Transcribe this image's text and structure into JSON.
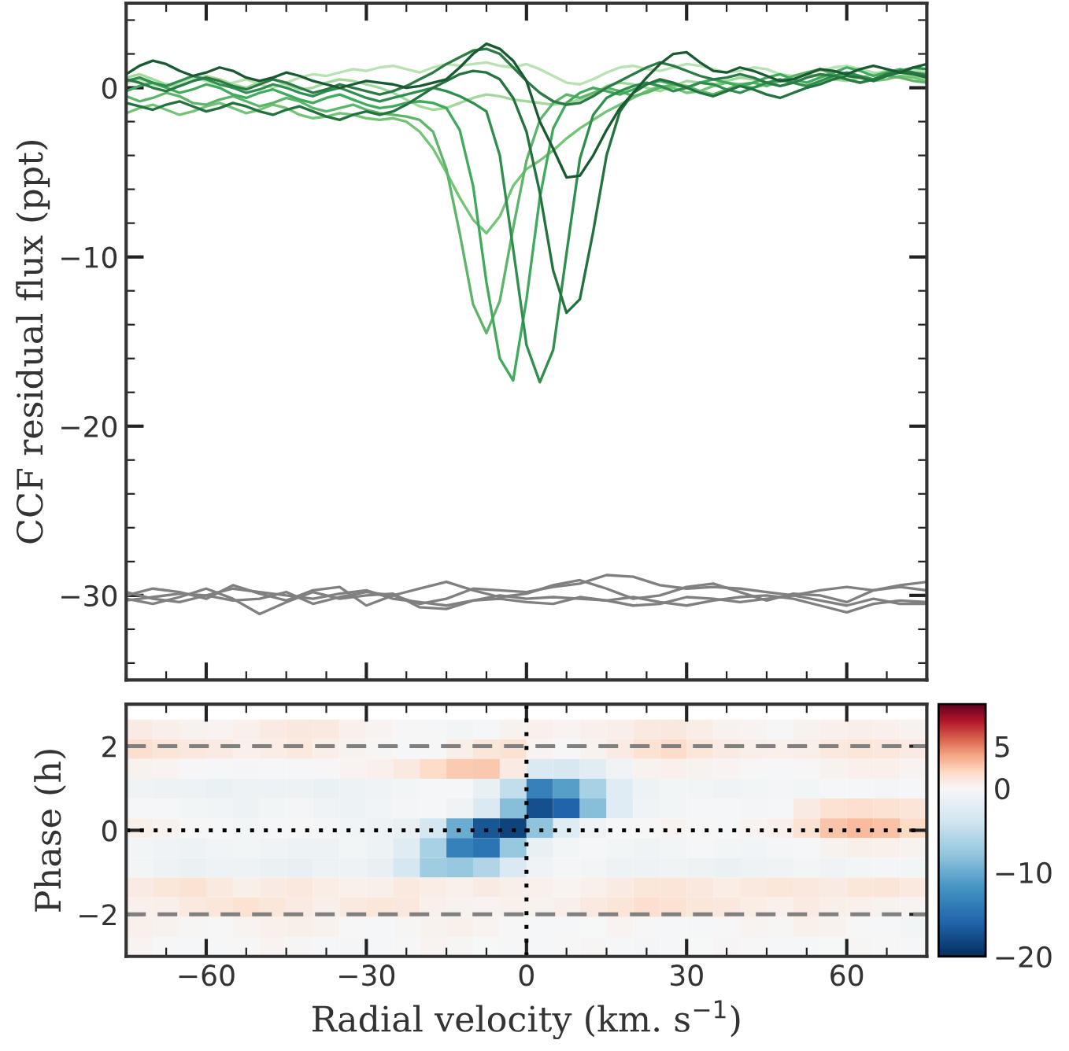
{
  "chart_data": [
    {
      "type": "line",
      "ylabel": "CCF residual flux (ppt)",
      "xlim": [
        -75,
        75
      ],
      "ylim": [
        -35,
        5
      ],
      "xticks": [
        {
          "value": -60,
          "label": null
        },
        {
          "value": -30,
          "label": null
        },
        {
          "value": 0,
          "label": null
        },
        {
          "value": 30,
          "label": null
        },
        {
          "value": 60,
          "label": null
        }
      ],
      "yticks": [
        -30,
        -20,
        -10,
        0
      ],
      "tick_labels": "y",
      "grid": false,
      "marker": "none",
      "line_style": "solid",
      "x": [
        -75,
        -72.5,
        -70,
        -67.5,
        -65,
        -62.5,
        -60,
        -57.5,
        -55,
        -52.5,
        -50,
        -47.5,
        -45,
        -42.5,
        -40,
        -37.5,
        -35,
        -32.5,
        -30,
        -27.5,
        -25,
        -22.5,
        -20,
        -17.5,
        -15,
        -12.5,
        -10,
        -7.5,
        -5,
        -2.5,
        0,
        2.5,
        5,
        7.5,
        10,
        12.5,
        15,
        17.5,
        20,
        22.5,
        25,
        27.5,
        30,
        32.5,
        35,
        37.5,
        40,
        42.5,
        45,
        47.5,
        50,
        52.5,
        55,
        57.5,
        60,
        62.5,
        65,
        67.5,
        70,
        72.5,
        75
      ],
      "series": [
        {
          "color": "#b7e2b1",
          "values": [
            0.3,
            0.5,
            0.2,
            0.0,
            0.3,
            0.6,
            0.4,
            0.1,
            0.3,
            0.5,
            0.2,
            0.0,
            0.3,
            0.6,
            0.8,
            0.7,
            0.9,
            1.1,
            1.0,
            1.2,
            1.3,
            1.1,
            0.9,
            1.2,
            1.4,
            1.3,
            1.4,
            1.5,
            1.3,
            1.2,
            1.4,
            1.1,
            0.7,
            0.3,
            0.2,
            0.5,
            0.9,
            1.2,
            1.3,
            1.1,
            1.0,
            1.2,
            1.4,
            1.3,
            1.1,
            0.9,
            1.0,
            1.2,
            1.1,
            0.8,
            0.7,
            0.9,
            1.0,
            1.2,
            1.3,
            1.1,
            0.9,
            0.8,
            1.0,
            1.1,
            0.9
          ]
        },
        {
          "color": "#a1d99b",
          "values": [
            0.6,
            0.8,
            0.5,
            0.2,
            0.1,
            0.4,
            0.7,
            0.5,
            0.2,
            0.0,
            0.3,
            0.5,
            0.2,
            -0.1,
            0.0,
            0.3,
            0.5,
            0.4,
            0.2,
            0.0,
            -0.3,
            -0.7,
            -1.1,
            -1.3,
            -1.2,
            -0.9,
            -0.6,
            -0.4,
            -0.5,
            -0.7,
            -0.8,
            -0.9,
            -1.0,
            -0.9,
            -0.7,
            -0.4,
            0.1,
            0.3,
            0.2,
            0.0,
            -0.2,
            0.1,
            0.4,
            0.3,
            0.2,
            0.4,
            0.6,
            0.5,
            0.3,
            0.4,
            0.6,
            0.8,
            0.7,
            0.5,
            0.4,
            0.6,
            0.8,
            1.0,
            0.9,
            0.7,
            0.6
          ]
        },
        {
          "color": "#74c476",
          "values": [
            -1.5,
            -1.2,
            -1.0,
            -1.3,
            -1.6,
            -1.4,
            -1.1,
            -0.9,
            -1.2,
            -1.5,
            -1.3,
            -1.0,
            -1.2,
            -1.6,
            -1.8,
            -1.7,
            -1.5,
            -1.6,
            -1.8,
            -1.9,
            -1.8,
            -2.0,
            -2.6,
            -3.6,
            -5.0,
            -6.5,
            -7.8,
            -8.6,
            -7.6,
            -5.8,
            -4.8,
            -4.3,
            -3.7,
            -3.0,
            -2.4,
            -1.9,
            -1.4,
            -1.0,
            -0.6,
            -0.2,
            0.1,
            0.0,
            -0.3,
            -0.2,
            0.1,
            0.3,
            0.2,
            0.0,
            0.2,
            0.4,
            0.3,
            0.1,
            0.3,
            0.6,
            0.8,
            0.6,
            0.4,
            0.5,
            0.7,
            0.6,
            0.4
          ]
        },
        {
          "color": "#5db56a",
          "values": [
            -0.5,
            -0.8,
            -0.6,
            -0.3,
            -0.5,
            -0.9,
            -1.0,
            -0.7,
            -0.5,
            -0.8,
            -1.1,
            -0.9,
            -0.6,
            -0.8,
            -1.2,
            -1.4,
            -1.2,
            -1.0,
            -1.3,
            -1.5,
            -1.6,
            -1.7,
            -1.9,
            -2.6,
            -4.8,
            -8.6,
            -12.8,
            -14.5,
            -12.6,
            -8.3,
            -4.3,
            -1.9,
            -0.9,
            -0.4,
            -0.6,
            -0.3,
            0.0,
            -0.2,
            -0.5,
            -0.3,
            0.0,
            0.2,
            0.1,
            -0.2,
            -0.4,
            -0.1,
            0.2,
            0.3,
            0.1,
            0.4,
            0.7,
            0.9,
            1.1,
            0.8,
            0.5,
            0.3,
            0.5,
            0.7,
            0.6,
            0.4,
            0.3
          ]
        },
        {
          "color": "#41ab5d",
          "values": [
            -0.2,
            0.1,
            0.3,
            0.0,
            -0.3,
            -0.1,
            0.2,
            0.0,
            -0.4,
            -0.6,
            -0.3,
            -0.1,
            -0.4,
            -0.7,
            -0.9,
            -0.6,
            -0.4,
            -0.7,
            -1.0,
            -1.2,
            -1.1,
            -0.9,
            -0.8,
            -0.9,
            -1.2,
            -2.5,
            -5.8,
            -11.5,
            -16.0,
            -17.3,
            -12.5,
            -6.5,
            -2.4,
            -0.9,
            -0.3,
            0.0,
            -0.2,
            -0.4,
            -0.1,
            0.2,
            0.4,
            0.2,
            0.0,
            0.3,
            0.5,
            0.3,
            0.1,
            0.3,
            0.6,
            0.8,
            0.5,
            0.3,
            0.6,
            0.9,
            1.2,
            1.0,
            0.7,
            0.9,
            1.1,
            0.9,
            0.8
          ]
        },
        {
          "color": "#2f8f4e",
          "values": [
            0.4,
            0.6,
            0.3,
            0.1,
            0.4,
            0.7,
            0.5,
            0.2,
            0.0,
            -0.3,
            -0.1,
            0.2,
            0.0,
            -0.3,
            -0.5,
            -0.2,
            0.0,
            -0.3,
            -0.6,
            -0.8,
            -0.6,
            -0.4,
            -0.2,
            0.0,
            -0.2,
            -0.5,
            -0.9,
            -1.4,
            -4.0,
            -9.5,
            -15.2,
            -17.4,
            -15.5,
            -9.8,
            -4.2,
            -1.6,
            -0.6,
            -0.2,
            0.1,
            0.3,
            0.1,
            -0.2,
            0.0,
            0.3,
            0.2,
            -0.1,
            -0.3,
            0.0,
            0.3,
            0.5,
            0.3,
            0.1,
            0.4,
            0.7,
            0.9,
            0.7,
            0.5,
            0.8,
            1.0,
            1.2,
            1.1
          ]
        },
        {
          "color": "#2c7a45",
          "values": [
            0.5,
            0.3,
            0.0,
            -0.2,
            0.1,
            0.4,
            0.6,
            0.4,
            0.1,
            -0.1,
            0.2,
            0.5,
            0.3,
            0.0,
            -0.3,
            -0.1,
            0.2,
            0.0,
            -0.2,
            -0.4,
            -0.2,
            0.1,
            0.5,
            0.9,
            1.4,
            1.8,
            2.2,
            2.3,
            2.0,
            1.2,
            0.4,
            -0.3,
            -0.8,
            -1.0,
            -0.9,
            -0.5,
            0.0,
            0.4,
            0.8,
            1.2,
            1.5,
            1.3,
            1.0,
            0.7,
            0.5,
            0.6,
            0.8,
            0.6,
            0.3,
            0.1,
            0.3,
            0.6,
            0.8,
            0.7,
            0.5,
            0.3,
            0.5,
            0.8,
            1.0,
            0.9,
            0.7
          ]
        },
        {
          "color": "#23733f",
          "values": [
            -0.9,
            -1.1,
            -1.3,
            -1.0,
            -0.8,
            -1.1,
            -1.4,
            -1.2,
            -0.9,
            -1.1,
            -1.4,
            -1.6,
            -1.3,
            -1.1,
            -1.4,
            -1.7,
            -1.9,
            -1.6,
            -1.4,
            -1.6,
            -1.4,
            -1.0,
            -0.5,
            0.0,
            0.4,
            0.8,
            1.0,
            0.9,
            0.5,
            -0.6,
            -2.6,
            -6.2,
            -10.8,
            -13.3,
            -12.5,
            -8.5,
            -4.0,
            -1.4,
            -0.3,
            0.2,
            0.5,
            0.3,
            0.0,
            -0.3,
            -0.5,
            -0.2,
            0.1,
            -0.1,
            -0.4,
            -0.6,
            -0.3,
            0.0,
            0.2,
            0.5,
            0.7,
            0.6,
            0.4,
            0.7,
            0.9,
            0.8,
            0.6
          ]
        },
        {
          "color": "#1a5a32",
          "values": [
            0.8,
            1.3,
            1.6,
            1.4,
            1.0,
            0.7,
            0.9,
            1.2,
            1.0,
            0.6,
            0.4,
            0.6,
            0.9,
            0.7,
            0.4,
            0.2,
            0.0,
            0.2,
            0.4,
            0.3,
            0.2,
            0.0,
            0.1,
            0.3,
            0.5,
            1.2,
            2.0,
            2.6,
            2.3,
            1.6,
            0.4,
            -2.0,
            -3.6,
            -5.3,
            -5.2,
            -4.0,
            -2.5,
            -1.2,
            -0.3,
            0.6,
            1.4,
            2.0,
            2.1,
            1.5,
            1.0,
            0.9,
            1.2,
            1.0,
            0.7,
            0.4,
            0.5,
            0.8,
            1.1,
            1.0,
            0.8,
            1.1,
            1.3,
            1.1,
            0.9,
            1.2,
            1.4
          ]
        },
        {
          "color": "#808080",
          "x": [
            -75,
            -70,
            -65,
            -60,
            -55,
            -50,
            -45,
            -40,
            -35,
            -30,
            -25,
            -20,
            -15,
            -10,
            -5,
            0,
            5,
            10,
            15,
            20,
            25,
            30,
            35,
            40,
            45,
            50,
            55,
            60,
            65,
            70,
            75
          ],
          "values": [
            -30.0,
            -29.6,
            -29.8,
            -30.2,
            -29.4,
            -29.9,
            -30.3,
            -29.7,
            -29.5,
            -30.6,
            -30.0,
            -29.6,
            -29.2,
            -29.7,
            -30.1,
            -29.9,
            -29.4,
            -29.1,
            -29.6,
            -30.2,
            -30.0,
            -29.5,
            -29.3,
            -29.8,
            -30.3,
            -29.9,
            -30.0,
            -30.4,
            -29.7,
            -29.5,
            -29.7
          ]
        },
        {
          "color": "#808080",
          "x": [
            -75,
            -70,
            -65,
            -60,
            -55,
            -50,
            -45,
            -40,
            -35,
            -30,
            -25,
            -20,
            -15,
            -10,
            -5,
            0,
            5,
            10,
            15,
            20,
            25,
            30,
            35,
            40,
            45,
            50,
            55,
            60,
            65,
            70,
            75
          ],
          "values": [
            -30.3,
            -30.1,
            -29.9,
            -30.0,
            -30.3,
            -30.2,
            -29.8,
            -30.5,
            -30.1,
            -29.8,
            -30.0,
            -30.5,
            -30.2,
            -29.6,
            -29.7,
            -29.8,
            -29.5,
            -29.3,
            -28.8,
            -28.9,
            -29.4,
            -29.6,
            -29.5,
            -29.6,
            -29.8,
            -30.0,
            -29.7,
            -29.5,
            -29.7,
            -29.4,
            -29.2
          ]
        },
        {
          "color": "#808080",
          "x": [
            -75,
            -70,
            -65,
            -60,
            -55,
            -50,
            -45,
            -40,
            -35,
            -30,
            -25,
            -20,
            -15,
            -10,
            -5,
            0,
            5,
            10,
            15,
            20,
            25,
            30,
            35,
            40,
            45,
            50,
            55,
            60,
            65,
            70,
            75
          ],
          "values": [
            -29.8,
            -30.2,
            -30.4,
            -30.0,
            -29.6,
            -29.8,
            -30.0,
            -30.2,
            -29.9,
            -29.7,
            -30.2,
            -30.4,
            -30.6,
            -30.3,
            -30.2,
            -30.4,
            -30.5,
            -30.1,
            -30.3,
            -30.1,
            -30.4,
            -30.6,
            -30.3,
            -30.1,
            -30.0,
            -30.2,
            -30.6,
            -31.0,
            -30.5,
            -30.3,
            -30.4
          ]
        },
        {
          "color": "#808080",
          "x": [
            -75,
            -70,
            -65,
            -60,
            -55,
            -50,
            -45,
            -40,
            -35,
            -30,
            -25,
            -20,
            -15,
            -10,
            -5,
            0,
            5,
            10,
            15,
            20,
            25,
            30,
            35,
            40,
            45,
            50,
            55,
            60,
            65,
            70,
            75
          ],
          "values": [
            -30.2,
            -30.5,
            -30.1,
            -29.6,
            -30.2,
            -31.1,
            -30.4,
            -29.8,
            -30.2,
            -30.0,
            -29.9,
            -30.7,
            -30.8,
            -30.3,
            -30.0,
            -30.2,
            -30.1,
            -30.2,
            -30.3,
            -30.6,
            -30.5,
            -30.1,
            -30.2,
            -30.4,
            -30.2,
            -30.0,
            -30.3,
            -30.6,
            -30.2,
            -30.5,
            -30.5
          ]
        }
      ]
    },
    {
      "type": "heatmap",
      "xlabel": "Radial velocity (km. s$^{−1}$)",
      "ylabel": "Phase (h)",
      "xlim": [
        -75,
        75
      ],
      "ylim": [
        -3,
        3
      ],
      "xticks": [
        -60,
        -30,
        0,
        30,
        60
      ],
      "yticks": [
        -2,
        0,
        2
      ],
      "clim": [
        -20,
        10
      ],
      "cticks": [
        -20,
        -10,
        0,
        5
      ],
      "grid": false,
      "x": [
        -72.5,
        -67.5,
        -62.5,
        -57.5,
        -52.5,
        -47.5,
        -42.5,
        -37.5,
        -32.5,
        -27.5,
        -22.5,
        -17.5,
        -12.5,
        -7.5,
        -2.5,
        2.5,
        7.5,
        12.5,
        17.5,
        22.5,
        27.5,
        32.5,
        37.5,
        42.5,
        47.5,
        52.5,
        57.5,
        62.5,
        67.5,
        72.5
      ],
      "y": [
        2.4,
        1.93,
        1.46,
        0.99,
        0.52,
        0.05,
        -0.42,
        -0.89,
        -1.36,
        -1.83,
        -2.3,
        -2.77
      ],
      "cells": [
        [
          0.8,
          0.6,
          0.3,
          0.2,
          0.5,
          0.8,
          1.0,
          0.9,
          0.5,
          0.2,
          0.0,
          -0.3,
          -0.5,
          -0.3,
          0.3,
          0.5,
          0.2,
          0.4,
          0.6,
          0.9,
          1.0,
          0.7,
          0.3,
          0.2,
          0.0,
          0.3,
          0.5,
          0.6,
          0.4,
          0.3
        ],
        [
          1.6,
          1.3,
          1.0,
          0.8,
          0.5,
          0.7,
          0.9,
          0.6,
          0.3,
          0.1,
          -0.2,
          0.0,
          0.6,
          1.2,
          1.4,
          0.2,
          0.0,
          0.3,
          0.8,
          1.5,
          1.8,
          1.2,
          0.8,
          0.6,
          0.4,
          0.6,
          0.9,
          1.1,
          1.0,
          0.8
        ],
        [
          0.3,
          0.2,
          0.0,
          -0.2,
          -0.4,
          -0.3,
          -0.2,
          0.0,
          0.2,
          0.4,
          0.9,
          1.8,
          2.6,
          2.7,
          0.8,
          -3.0,
          -3.4,
          -2.2,
          -0.8,
          0.3,
          0.5,
          0.3,
          0.2,
          0.0,
          -0.2,
          0.0,
          0.3,
          0.5,
          0.4,
          0.2
        ],
        [
          -0.8,
          -1.0,
          -1.2,
          -1.3,
          -1.1,
          -1.2,
          -1.0,
          -1.3,
          -1.1,
          -0.8,
          -0.5,
          -0.2,
          -0.3,
          -1.5,
          -5.0,
          -13.5,
          -11.0,
          -6.5,
          -2.5,
          -1.0,
          -0.6,
          -0.5,
          -0.8,
          -0.6,
          -0.4,
          -0.5,
          -0.3,
          -0.2,
          -0.4,
          -0.3
        ],
        [
          -0.3,
          -0.2,
          -0.5,
          -0.7,
          -0.9,
          -0.6,
          -0.4,
          -0.8,
          -1.0,
          -0.7,
          -0.4,
          -0.3,
          -0.8,
          -3.0,
          -8.5,
          -17.5,
          -16.0,
          -8.5,
          -2.5,
          -0.8,
          -0.5,
          -0.3,
          -0.2,
          -0.4,
          -0.2,
          0.8,
          1.5,
          1.6,
          1.4,
          1.3
        ],
        [
          0.6,
          0.3,
          0.0,
          -0.3,
          -0.5,
          -0.2,
          0.0,
          -0.4,
          -0.7,
          -1.0,
          -1.5,
          -3.5,
          -10.0,
          -17.0,
          -18.5,
          -8.0,
          -2.5,
          -0.8,
          -0.3,
          0.0,
          0.2,
          0.0,
          -0.2,
          0.2,
          0.5,
          1.5,
          2.8,
          3.2,
          2.9,
          2.0
        ],
        [
          -0.5,
          -0.8,
          -1.0,
          -0.7,
          -0.5,
          -0.8,
          -1.1,
          -0.9,
          -0.6,
          -1.0,
          -2.5,
          -6.5,
          -13.5,
          -14.5,
          -7.5,
          -1.5,
          -0.5,
          -0.3,
          -0.6,
          -0.8,
          -0.5,
          -0.3,
          -0.5,
          -0.7,
          -0.4,
          -0.2,
          0.3,
          0.6,
          0.5,
          0.3
        ],
        [
          -0.6,
          -1.0,
          -1.3,
          -1.2,
          -1.0,
          -1.3,
          -1.5,
          -1.2,
          -1.0,
          -1.4,
          -3.5,
          -7.0,
          -7.5,
          -6.0,
          -3.0,
          -0.8,
          -0.4,
          -0.6,
          -0.9,
          -1.1,
          -0.8,
          -1.0,
          -1.3,
          -1.1,
          -0.8,
          -0.6,
          -0.8,
          -0.5,
          -0.4,
          -0.6
        ],
        [
          0.8,
          1.2,
          1.4,
          0.9,
          0.6,
          0.8,
          1.0,
          0.7,
          0.4,
          0.6,
          0.9,
          0.7,
          0.5,
          0.8,
          0.6,
          0.4,
          0.2,
          0.5,
          0.8,
          1.1,
          1.3,
          1.0,
          0.7,
          0.9,
          1.2,
          1.0,
          0.8,
          1.1,
          1.3,
          0.9
        ],
        [
          0.4,
          0.6,
          0.9,
          1.2,
          1.4,
          1.1,
          0.8,
          0.6,
          0.9,
          1.2,
          1.0,
          0.5,
          0.3,
          0.2,
          0.4,
          0.3,
          0.6,
          0.9,
          1.3,
          1.6,
          1.5,
          1.2,
          1.0,
          0.7,
          0.5,
          0.8,
          0.6,
          0.4,
          0.3,
          0.2
        ],
        [
          0.5,
          0.3,
          0.1,
          0.0,
          0.2,
          0.4,
          0.6,
          0.3,
          0.0,
          -0.2,
          0.1,
          0.3,
          0.5,
          0.2,
          0.0,
          -0.2,
          -0.3,
          -0.1,
          0.2,
          0.0,
          -0.2,
          -0.3,
          0.0,
          0.2,
          0.1,
          0.4,
          0.3,
          0.0,
          -0.3,
          -0.5
        ],
        [
          0.2,
          0.0,
          -0.2,
          -0.3,
          0.0,
          0.2,
          0.1,
          -0.2,
          -0.4,
          -0.3,
          0.0,
          0.2,
          0.1,
          -0.1,
          -0.3,
          -0.2,
          0.0,
          0.1,
          -0.2,
          -0.4,
          -0.3,
          -0.1,
          0.1,
          0.0,
          -0.2,
          -0.3,
          -0.1,
          0.1,
          0.0,
          -0.2
        ]
      ],
      "ref_lines": [
        {
          "axis": "y",
          "value": 2,
          "color": "#808080",
          "line_style": "dashed"
        },
        {
          "axis": "y",
          "value": -2,
          "color": "#808080",
          "line_style": "dashed"
        },
        {
          "axis": "y",
          "value": 0,
          "color": "#000000",
          "line_style": "dotted"
        },
        {
          "axis": "x",
          "value": 0,
          "color": "#000000",
          "line_style": "dotted"
        }
      ]
    }
  ]
}
